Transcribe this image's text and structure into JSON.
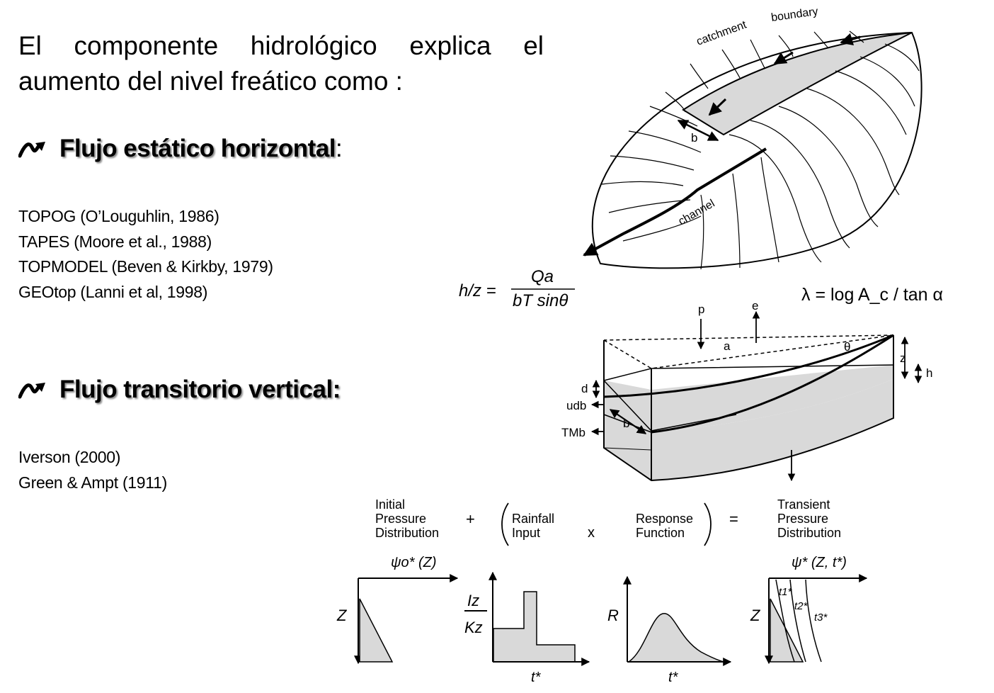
{
  "intro_text": "El componente hidrológico explica el aumento del nivel freático como :",
  "sections": [
    {
      "heading": "Flujo estático horizontal",
      "heading_suffix": ":",
      "references": [
        "TOPOG (O’Louguhlin, 1986)",
        "TAPES (Moore et al., 1988)",
        "TOPMODEL (Beven & Kirkby, 1979)",
        "GEOtop (Lanni et al, 1998)"
      ]
    },
    {
      "heading": "Flujo transitorio vertical:",
      "references": [
        "Iverson (2000)",
        "Green & Ampt  (1911)"
      ]
    }
  ],
  "catchment_figure": {
    "boundary_label_1": "catchment",
    "boundary_label_2": "boundary",
    "width_label": "b",
    "channel_label": "channel"
  },
  "equations": {
    "h_over_z": {
      "lhs": "h/z =",
      "numerator": "Qa",
      "denominator": "bT sinθ"
    },
    "topographic_index": "λ = log A_c / tan α"
  },
  "block_figure": {
    "labels": {
      "p": "p",
      "e": "e",
      "a": "a",
      "theta": "θ",
      "z": "z",
      "h": "h",
      "d": "d",
      "udb": "udb",
      "b": "b",
      "TMb": "TMb"
    }
  },
  "response_figure": {
    "terms": {
      "initial": [
        "Initial",
        "Pressure",
        "Distribution"
      ],
      "plus": "+",
      "rainfall": [
        "Rainfall",
        "Input"
      ],
      "times": "x",
      "response": [
        "Response",
        "Function"
      ],
      "equals": "=",
      "transient": [
        "Transient",
        "Pressure",
        "Distribution"
      ]
    },
    "plots": {
      "psi0_title": "ψo* (Z)",
      "z_label": "Z",
      "iz_label": "Iz",
      "kz_label": "Kz",
      "t_star": "t*",
      "r_label": "R",
      "psi_title": "ψ* (Z, t*)",
      "t1": "t1*",
      "t2": "t2*",
      "t3": "t3*"
    }
  }
}
